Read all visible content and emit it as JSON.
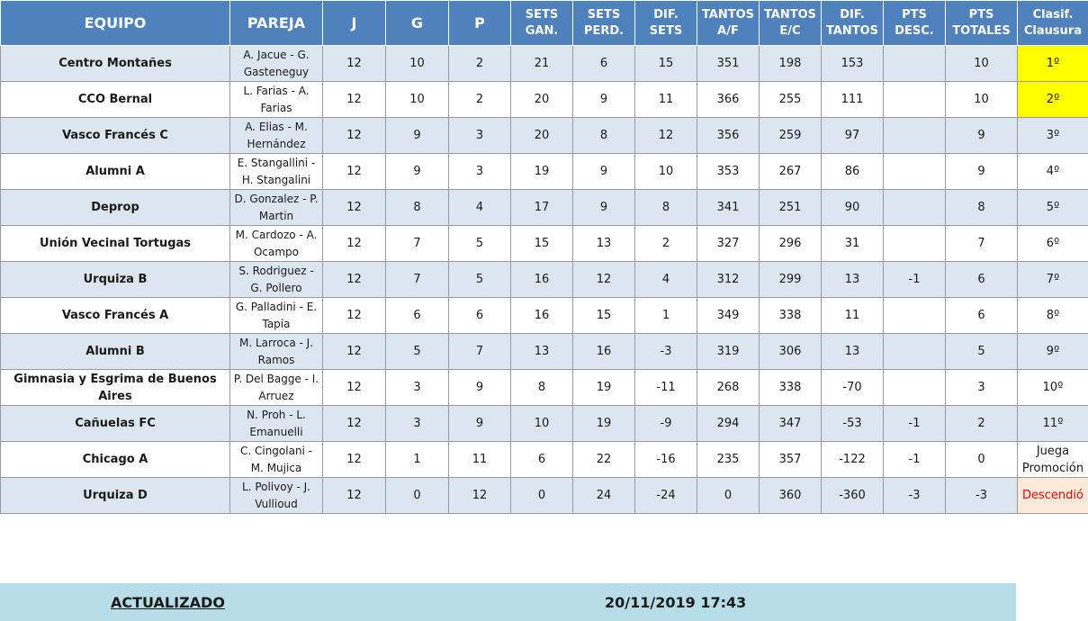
{
  "headers": {
    "equipo": "EQUIPO",
    "pareja": "PAREJA",
    "j": "J",
    "g": "G",
    "p": "P",
    "sets_gan": "SETS\nGAN.",
    "sets_perd": "SETS\nPERD.",
    "dif_sets": "DIF. SETS",
    "tantos_af": "TANTOS\nA/F",
    "tantos_ec": "TANTOS\nE/C",
    "dif_tantos": "DIF.\nTANTOS",
    "pts_desc": "PTS\nDESC.",
    "pts_totales": "PTS\nTOTALES",
    "clasif": "Clasif.\nClausura"
  },
  "rows": [
    {
      "equipo": "Centro Montañes",
      "pareja": "A. Jacue - G. Gasteneguy",
      "j": "12",
      "g": "10",
      "p": "2",
      "sets_gan": "21",
      "sets_perd": "6",
      "dif_sets": "15",
      "tantos_af": "351",
      "tantos_ec": "198",
      "dif_tantos": "153",
      "pts_desc": "",
      "pts_totales": "10",
      "clasif": "1º"
    },
    {
      "equipo": "CCO Bernal",
      "pareja": "L. Farias - A. Farias",
      "j": "12",
      "g": "10",
      "p": "2",
      "sets_gan": "20",
      "sets_perd": "9",
      "dif_sets": "11",
      "tantos_af": "366",
      "tantos_ec": "255",
      "dif_tantos": "111",
      "pts_desc": "",
      "pts_totales": "10",
      "clasif": "2º"
    },
    {
      "equipo": "Vasco Francés C",
      "pareja": "A. Elias - M. Hernández",
      "j": "12",
      "g": "9",
      "p": "3",
      "sets_gan": "20",
      "sets_perd": "8",
      "dif_sets": "12",
      "tantos_af": "356",
      "tantos_ec": "259",
      "dif_tantos": "97",
      "pts_desc": "",
      "pts_totales": "9",
      "clasif": "3º"
    },
    {
      "equipo": "Alumni A",
      "pareja": "E. Stangallini - H. Stangalini",
      "j": "12",
      "g": "9",
      "p": "3",
      "sets_gan": "19",
      "sets_perd": "9",
      "dif_sets": "10",
      "tantos_af": "353",
      "tantos_ec": "267",
      "dif_tantos": "86",
      "pts_desc": "",
      "pts_totales": "9",
      "clasif": "4º"
    },
    {
      "equipo": "Deprop",
      "pareja": "D. Gonzalez - P. Martin",
      "j": "12",
      "g": "8",
      "p": "4",
      "sets_gan": "17",
      "sets_perd": "9",
      "dif_sets": "8",
      "tantos_af": "341",
      "tantos_ec": "251",
      "dif_tantos": "90",
      "pts_desc": "",
      "pts_totales": "8",
      "clasif": "5º"
    },
    {
      "equipo": "Unión Vecinal Tortugas",
      "pareja": "M. Cardozo - A. Ocampo",
      "j": "12",
      "g": "7",
      "p": "5",
      "sets_gan": "15",
      "sets_perd": "13",
      "dif_sets": "2",
      "tantos_af": "327",
      "tantos_ec": "296",
      "dif_tantos": "31",
      "pts_desc": "",
      "pts_totales": "7",
      "clasif": "6º"
    },
    {
      "equipo": "Urquiza B",
      "pareja": "S. Rodriguez - G. Pollero",
      "j": "12",
      "g": "7",
      "p": "5",
      "sets_gan": "16",
      "sets_perd": "12",
      "dif_sets": "4",
      "tantos_af": "312",
      "tantos_ec": "299",
      "dif_tantos": "13",
      "pts_desc": "-1",
      "pts_totales": "6",
      "clasif": "7º"
    },
    {
      "equipo": "Vasco Francés A",
      "pareja": "G. Palladini - E. Tapia",
      "j": "12",
      "g": "6",
      "p": "6",
      "sets_gan": "16",
      "sets_perd": "15",
      "dif_sets": "1",
      "tantos_af": "349",
      "tantos_ec": "338",
      "dif_tantos": "11",
      "pts_desc": "",
      "pts_totales": "6",
      "clasif": "8º"
    },
    {
      "equipo": "Alumni B",
      "pareja": "M. Larroca - J. Ramos",
      "j": "12",
      "g": "5",
      "p": "7",
      "sets_gan": "13",
      "sets_perd": "16",
      "dif_sets": "-3",
      "tantos_af": "319",
      "tantos_ec": "306",
      "dif_tantos": "13",
      "pts_desc": "",
      "pts_totales": "5",
      "clasif": "9º"
    },
    {
      "equipo": "Gimnasia y Esgrima de Buenos Aires",
      "pareja": "P. Del Bagge - I. Arruez",
      "j": "12",
      "g": "3",
      "p": "9",
      "sets_gan": "8",
      "sets_perd": "19",
      "dif_sets": "-11",
      "tantos_af": "268",
      "tantos_ec": "338",
      "dif_tantos": "-70",
      "pts_desc": "",
      "pts_totales": "3",
      "clasif": "10º"
    },
    {
      "equipo": "Cañuelas FC",
      "pareja": "N. Proh - L. Emanuelli",
      "j": "12",
      "g": "3",
      "p": "9",
      "sets_gan": "10",
      "sets_perd": "19",
      "dif_sets": "-9",
      "tantos_af": "294",
      "tantos_ec": "347",
      "dif_tantos": "-53",
      "pts_desc": "-1",
      "pts_totales": "2",
      "clasif": "11º"
    },
    {
      "equipo": "Chicago A",
      "pareja": "C. Cingolani - M. Mujica",
      "j": "12",
      "g": "1",
      "p": "11",
      "sets_gan": "6",
      "sets_perd": "22",
      "dif_sets": "-16",
      "tantos_af": "235",
      "tantos_ec": "357",
      "dif_tantos": "-122",
      "pts_desc": "-1",
      "pts_totales": "0",
      "clasif": "Juega Promoción"
    },
    {
      "equipo": "Urquiza D",
      "pareja": "L. Polivoy - J. Vullioud",
      "j": "12",
      "g": "0",
      "p": "12",
      "sets_gan": "0",
      "sets_perd": "24",
      "dif_sets": "-24",
      "tantos_af": "0",
      "tantos_ec": "360",
      "dif_tantos": "-360",
      "pts_desc": "-3",
      "pts_totales": "-3",
      "clasif": "Descendió"
    }
  ],
  "footer": {
    "label": "ACTUALIZADO",
    "value": "20/11/2019 17:43"
  },
  "colors": {
    "header_bg": "#4f81bd",
    "row_alt_bg": "#dce6f1",
    "highlight_gold": "#ffff00",
    "relegated_bg": "#fde9d9",
    "relegated_text": "#ff0000",
    "footer_bg": "#b7dee8"
  }
}
